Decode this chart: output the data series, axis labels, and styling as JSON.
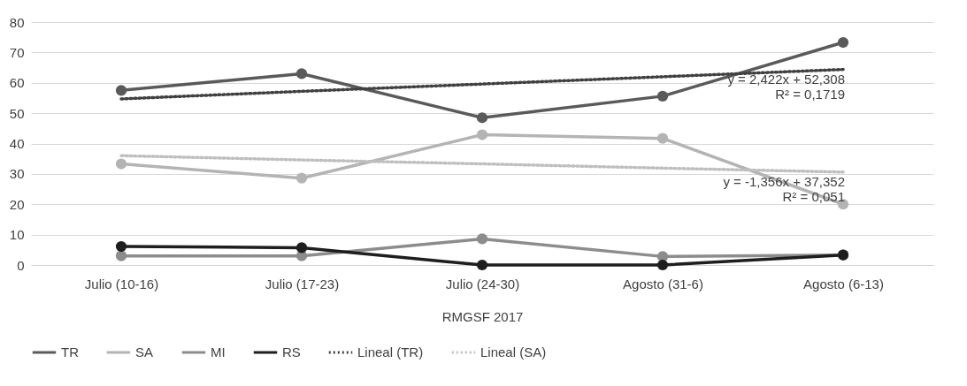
{
  "chart_data": {
    "type": "line",
    "xlabel": "RMGSF 2017",
    "categories": [
      "Julio (10-16)",
      "Julio (17-23)",
      "Julio (24-30)",
      "Agosto (31-6)",
      "Agosto (6-13)"
    ],
    "series": [
      {
        "name": "TR",
        "color": "#5a5a5a",
        "values": [
          57.5,
          63,
          48.5,
          55.6,
          73.3
        ]
      },
      {
        "name": "SA",
        "color": "#b4b4b4",
        "values": [
          33.3,
          28.6,
          42.9,
          41.7,
          20
        ]
      },
      {
        "name": "MI",
        "color": "#8c8c8c",
        "values": [
          3,
          3,
          8.6,
          2.8,
          3.3
        ]
      },
      {
        "name": "RS",
        "color": "#1e1e1e",
        "values": [
          6.1,
          5.7,
          0,
          0,
          3.3
        ]
      },
      {
        "name": "Lineal (TR)",
        "color": "#404040",
        "marker": "none",
        "line_style": "dotted",
        "values": [
          54.7,
          57.2,
          59.6,
          62.0,
          64.4
        ]
      },
      {
        "name": "Lineal (SA)",
        "color": "#bfbfbf",
        "marker": "none",
        "line_style": "dotted",
        "values": [
          36.0,
          34.6,
          33.3,
          31.9,
          30.6
        ]
      }
    ],
    "ylim": [
      0,
      80
    ],
    "yticks": [
      0,
      10,
      20,
      30,
      40,
      50,
      60,
      70,
      80
    ],
    "grid": "y",
    "legend": "bottom",
    "marker": "circle",
    "line_style": "solid",
    "annotations": [
      {
        "text": "y = 2,422x + 52,308\nR² = 0,1719",
        "x": "Agosto (6-13)",
        "y": 64.4
      },
      {
        "text": "y = -1,356x + 37,352\nR² = 0,051",
        "x": "Agosto (6-13)",
        "y": 30.6
      }
    ]
  }
}
